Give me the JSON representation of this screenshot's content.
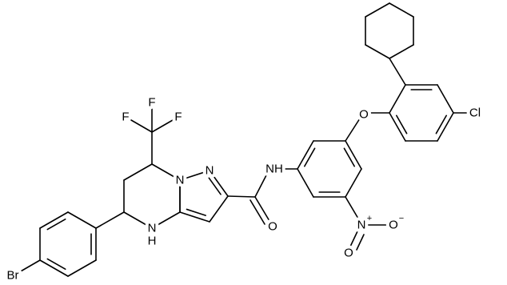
{
  "atoms": [
    "F",
    "F",
    "F",
    "N",
    "N",
    "N",
    "H",
    "O",
    "NH",
    "O",
    "Cl",
    "N",
    "+",
    "O",
    "−",
    "O",
    "Br"
  ]
}
